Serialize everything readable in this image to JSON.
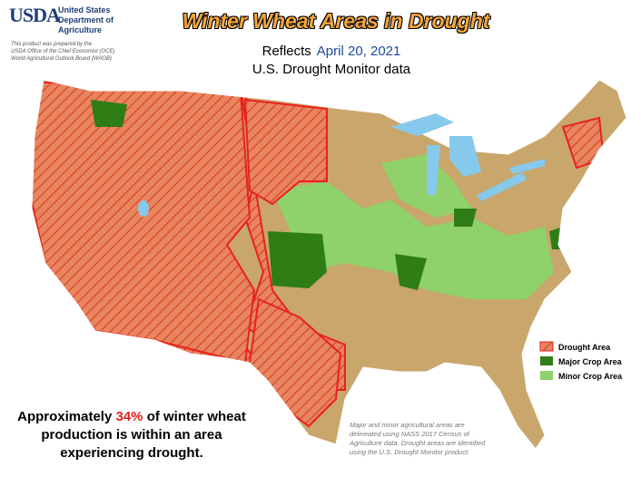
{
  "logo": {
    "mark": "USDA",
    "lines": [
      "United States",
      "Department of",
      "Agriculture"
    ]
  },
  "credit": [
    "This product was prepared by the",
    "USDA Office of the Chief Economist (OCE)",
    "World Agricultural Outlook Board (WAOB)"
  ],
  "title": "Winter Wheat Areas in Drought",
  "subtitle": {
    "prefix": "Reflects",
    "date": "April 20, 2021",
    "line2": "U.S. Drought Monitor data"
  },
  "legend": [
    "Drought Area",
    "Major Crop Area",
    "Minor Crop Area"
  ],
  "statement": {
    "before": "Approximately",
    "highlight": "34%",
    "after": "of winter wheat production is within an area experiencing drought."
  },
  "note": "Major and minor agricultural areas are delineated using NASS 2017 Census of Agriculture data. Drought areas are identified using the U.S. Drought Monitor product."
}
